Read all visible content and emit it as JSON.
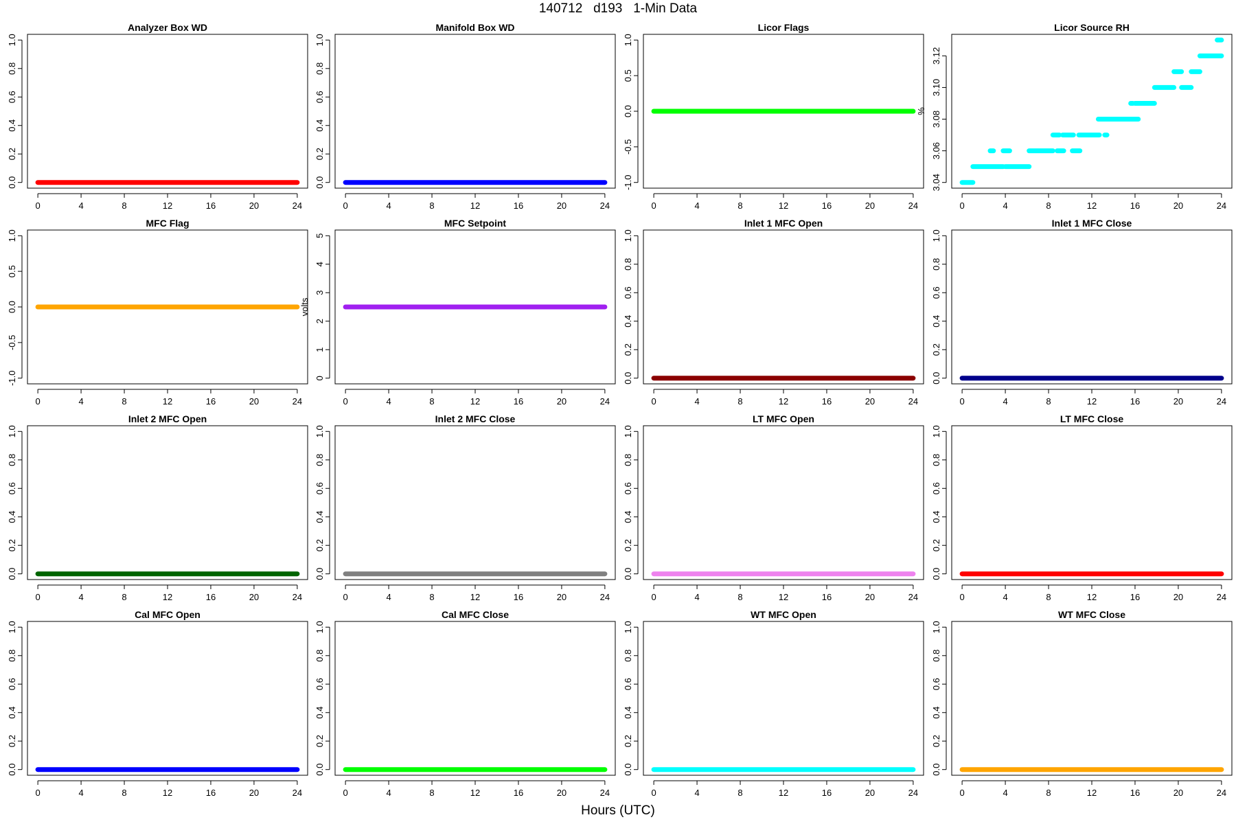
{
  "figure": {
    "title": "140712   d193   1-Min Data",
    "xlabel": "Hours (UTC)"
  },
  "chart_data": [
    {
      "type": "scatter",
      "title": "Analyzer Box WD",
      "ylabel": "",
      "color": "#ff0000",
      "xlim": [
        0,
        24
      ],
      "ylim": [
        0,
        1
      ],
      "xticks": [
        "0",
        "4",
        "8",
        "12",
        "16",
        "20",
        "24"
      ],
      "yticks": [
        "0.0",
        "0.2",
        "0.4",
        "0.6",
        "0.8",
        "1.0"
      ],
      "series": [
        {
          "segments": [
            [
              0,
              24,
              0
            ]
          ]
        }
      ]
    },
    {
      "type": "scatter",
      "title": "Manifold Box WD",
      "ylabel": "",
      "color": "#0000ff",
      "xlim": [
        0,
        24
      ],
      "ylim": [
        0,
        1
      ],
      "xticks": [
        "0",
        "4",
        "8",
        "12",
        "16",
        "20",
        "24"
      ],
      "yticks": [
        "0.0",
        "0.2",
        "0.4",
        "0.6",
        "0.8",
        "1.0"
      ],
      "series": [
        {
          "segments": [
            [
              0,
              24,
              0
            ]
          ]
        }
      ]
    },
    {
      "type": "scatter",
      "title": "Licor Flags",
      "ylabel": "",
      "color": "#00ff00",
      "xlim": [
        0,
        24
      ],
      "ylim": [
        -1,
        1
      ],
      "xticks": [
        "0",
        "4",
        "8",
        "12",
        "16",
        "20",
        "24"
      ],
      "yticks": [
        "-1.0",
        "-0.5",
        "0.0",
        "0.5",
        "1.0"
      ],
      "series": [
        {
          "segments": [
            [
              0,
              24,
              0
            ]
          ]
        }
      ]
    },
    {
      "type": "scatter",
      "title": "Licor Source RH",
      "ylabel": "%",
      "color": "#00ffff",
      "xlim": [
        0,
        24
      ],
      "ylim": [
        3.04,
        3.13
      ],
      "xticks": [
        "0",
        "4",
        "8",
        "12",
        "16",
        "20",
        "24"
      ],
      "yticks": [
        "3.04",
        "3.06",
        "3.08",
        "3.10",
        "3.12"
      ],
      "series": [
        {
          "segments": [
            [
              0,
              1.0,
              3.04
            ],
            [
              1.0,
              3.8,
              3.05
            ],
            [
              2.6,
              2.9,
              3.06
            ],
            [
              3.8,
              4.4,
              3.06
            ],
            [
              4.0,
              6.2,
              3.05
            ],
            [
              6.2,
              8.4,
              3.06
            ],
            [
              8.4,
              9.0,
              3.07
            ],
            [
              8.8,
              9.4,
              3.06
            ],
            [
              9.3,
              10.3,
              3.07
            ],
            [
              10.2,
              10.9,
              3.06
            ],
            [
              10.8,
              12.7,
              3.07
            ],
            [
              12.6,
              16.3,
              3.08
            ],
            [
              13.2,
              13.4,
              3.07
            ],
            [
              15.6,
              15.8,
              3.09
            ],
            [
              16.0,
              17.8,
              3.09
            ],
            [
              17.8,
              19.6,
              3.1
            ],
            [
              19.6,
              20.3,
              3.11
            ],
            [
              20.3,
              21.2,
              3.1
            ],
            [
              21.2,
              22.0,
              3.11
            ],
            [
              22.0,
              24.0,
              3.12
            ],
            [
              23.6,
              24.0,
              3.13
            ]
          ]
        }
      ]
    },
    {
      "type": "scatter",
      "title": "MFC Flag",
      "ylabel": "",
      "color": "#ffa500",
      "xlim": [
        0,
        24
      ],
      "ylim": [
        -1,
        1
      ],
      "xticks": [
        "0",
        "4",
        "8",
        "12",
        "16",
        "20",
        "24"
      ],
      "yticks": [
        "-1.0",
        "-0.5",
        "0.0",
        "0.5",
        "1.0"
      ],
      "series": [
        {
          "segments": [
            [
              0,
              24,
              0
            ]
          ]
        }
      ]
    },
    {
      "type": "scatter",
      "title": "MFC Setpoint",
      "ylabel": "volts",
      "color": "#a020f0",
      "xlim": [
        0,
        24
      ],
      "ylim": [
        0,
        5
      ],
      "xticks": [
        "0",
        "4",
        "8",
        "12",
        "16",
        "20",
        "24"
      ],
      "yticks": [
        "0",
        "1",
        "2",
        "3",
        "4",
        "5"
      ],
      "series": [
        {
          "segments": [
            [
              0,
              24,
              2.5
            ]
          ]
        }
      ]
    },
    {
      "type": "scatter",
      "title": "Inlet 1 MFC Open",
      "ylabel": "",
      "color": "#8b0000",
      "xlim": [
        0,
        24
      ],
      "ylim": [
        0,
        1
      ],
      "xticks": [
        "0",
        "4",
        "8",
        "12",
        "16",
        "20",
        "24"
      ],
      "yticks": [
        "0.0",
        "0.2",
        "0.4",
        "0.6",
        "0.8",
        "1.0"
      ],
      "series": [
        {
          "segments": [
            [
              0,
              24,
              0
            ]
          ]
        }
      ]
    },
    {
      "type": "scatter",
      "title": "Inlet 1 MFC Close",
      "ylabel": "",
      "color": "#00008b",
      "xlim": [
        0,
        24
      ],
      "ylim": [
        0,
        1
      ],
      "xticks": [
        "0",
        "4",
        "8",
        "12",
        "16",
        "20",
        "24"
      ],
      "yticks": [
        "0.0",
        "0.2",
        "0.4",
        "0.6",
        "0.8",
        "1.0"
      ],
      "series": [
        {
          "segments": [
            [
              0,
              24,
              0
            ]
          ]
        }
      ]
    },
    {
      "type": "scatter",
      "title": "Inlet 2 MFC Open",
      "ylabel": "",
      "color": "#006400",
      "xlim": [
        0,
        24
      ],
      "ylim": [
        0,
        1
      ],
      "xticks": [
        "0",
        "4",
        "8",
        "12",
        "16",
        "20",
        "24"
      ],
      "yticks": [
        "0.0",
        "0.2",
        "0.4",
        "0.6",
        "0.8",
        "1.0"
      ],
      "series": [
        {
          "segments": [
            [
              0,
              24,
              0
            ]
          ]
        }
      ]
    },
    {
      "type": "scatter",
      "title": "Inlet 2 MFC Close",
      "ylabel": "",
      "color": "#808080",
      "xlim": [
        0,
        24
      ],
      "ylim": [
        0,
        1
      ],
      "xticks": [
        "0",
        "4",
        "8",
        "12",
        "16",
        "20",
        "24"
      ],
      "yticks": [
        "0.0",
        "0.2",
        "0.4",
        "0.6",
        "0.8",
        "1.0"
      ],
      "series": [
        {
          "segments": [
            [
              0,
              24,
              0
            ]
          ]
        }
      ]
    },
    {
      "type": "scatter",
      "title": "LT MFC Open",
      "ylabel": "",
      "color": "#ee82ee",
      "xlim": [
        0,
        24
      ],
      "ylim": [
        0,
        1
      ],
      "xticks": [
        "0",
        "4",
        "8",
        "12",
        "16",
        "20",
        "24"
      ],
      "yticks": [
        "0.0",
        "0.2",
        "0.4",
        "0.6",
        "0.8",
        "1.0"
      ],
      "series": [
        {
          "segments": [
            [
              0,
              24,
              0
            ]
          ]
        }
      ]
    },
    {
      "type": "scatter",
      "title": "LT MFC Close",
      "ylabel": "",
      "color": "#ff0000",
      "xlim": [
        0,
        24
      ],
      "ylim": [
        0,
        1
      ],
      "xticks": [
        "0",
        "4",
        "8",
        "12",
        "16",
        "20",
        "24"
      ],
      "yticks": [
        "0.0",
        "0.2",
        "0.4",
        "0.6",
        "0.8",
        "1.0"
      ],
      "series": [
        {
          "segments": [
            [
              0,
              24,
              0
            ]
          ]
        }
      ]
    },
    {
      "type": "scatter",
      "title": "Cal MFC Open",
      "ylabel": "",
      "color": "#0000ff",
      "xlim": [
        0,
        24
      ],
      "ylim": [
        0,
        1
      ],
      "xticks": [
        "0",
        "4",
        "8",
        "12",
        "16",
        "20",
        "24"
      ],
      "yticks": [
        "0.0",
        "0.2",
        "0.4",
        "0.6",
        "0.8",
        "1.0"
      ],
      "series": [
        {
          "segments": [
            [
              0,
              24,
              0
            ]
          ]
        }
      ]
    },
    {
      "type": "scatter",
      "title": "Cal MFC Close",
      "ylabel": "",
      "color": "#00ff00",
      "xlim": [
        0,
        24
      ],
      "ylim": [
        0,
        1
      ],
      "xticks": [
        "0",
        "4",
        "8",
        "12",
        "16",
        "20",
        "24"
      ],
      "yticks": [
        "0.0",
        "0.2",
        "0.4",
        "0.6",
        "0.8",
        "1.0"
      ],
      "series": [
        {
          "segments": [
            [
              0,
              24,
              0
            ]
          ]
        }
      ]
    },
    {
      "type": "scatter",
      "title": "WT MFC Open",
      "ylabel": "",
      "color": "#00ffff",
      "xlim": [
        0,
        24
      ],
      "ylim": [
        0,
        1
      ],
      "xticks": [
        "0",
        "4",
        "8",
        "12",
        "16",
        "20",
        "24"
      ],
      "yticks": [
        "0.0",
        "0.2",
        "0.4",
        "0.6",
        "0.8",
        "1.0"
      ],
      "series": [
        {
          "segments": [
            [
              0,
              24,
              0
            ]
          ]
        }
      ]
    },
    {
      "type": "scatter",
      "title": "WT MFC Close",
      "ylabel": "",
      "color": "#ffa500",
      "xlim": [
        0,
        24
      ],
      "ylim": [
        0,
        1
      ],
      "xticks": [
        "0",
        "4",
        "8",
        "12",
        "16",
        "20",
        "24"
      ],
      "yticks": [
        "0.0",
        "0.2",
        "0.4",
        "0.6",
        "0.8",
        "1.0"
      ],
      "series": [
        {
          "segments": [
            [
              0,
              24,
              0
            ]
          ]
        }
      ]
    }
  ]
}
